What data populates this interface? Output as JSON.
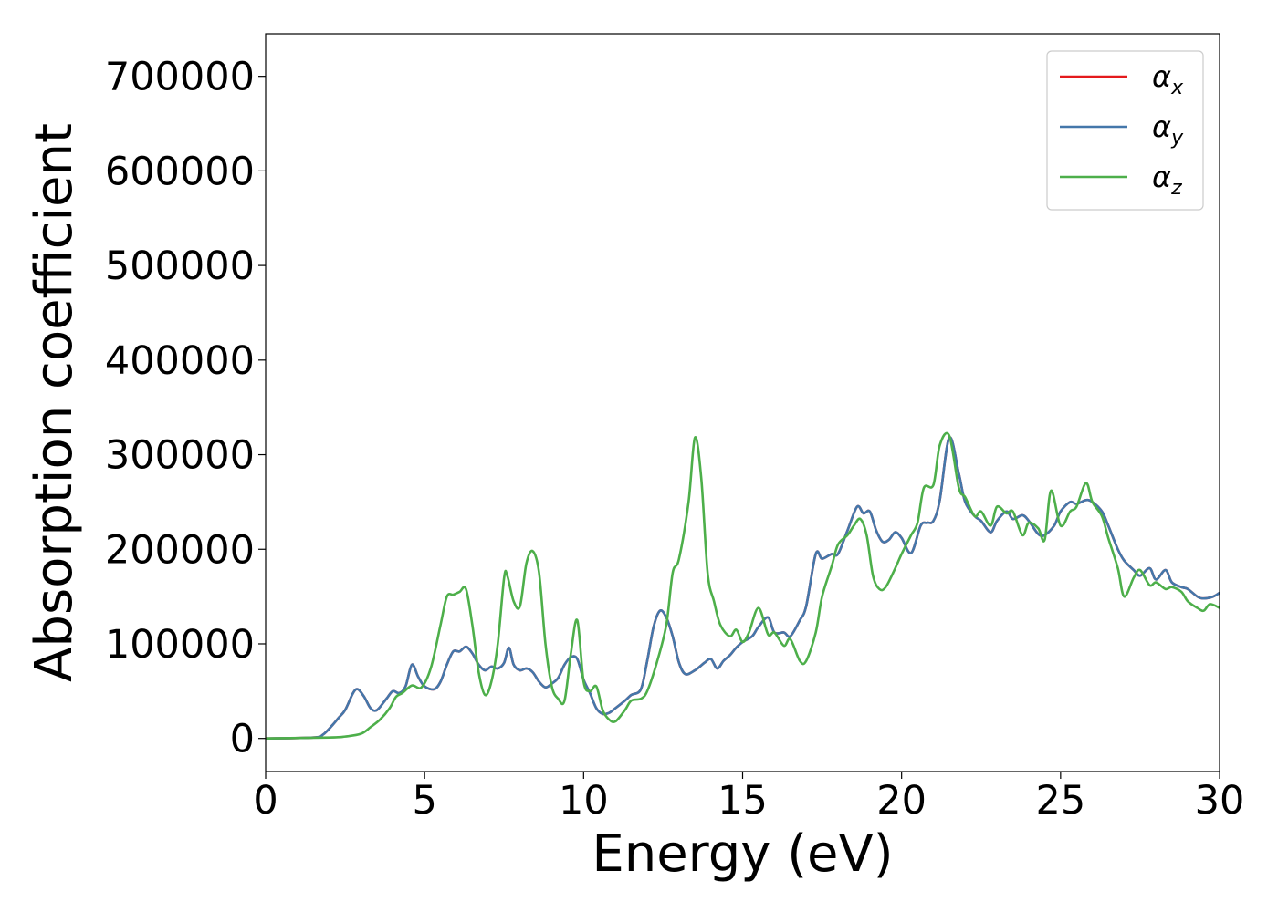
{
  "chart_data": {
    "type": "line",
    "xlabel": "Energy (eV)",
    "ylabel": "Absorption coefficient",
    "xlim": [
      0,
      30
    ],
    "ylim": [
      -35000,
      745000
    ],
    "xticks": [
      0,
      5,
      10,
      15,
      20,
      25,
      30
    ],
    "xtick_labels": [
      "0",
      "5",
      "10",
      "15",
      "20",
      "25",
      "30"
    ],
    "yticks": [
      0,
      100000,
      200000,
      300000,
      400000,
      500000,
      600000,
      700000
    ],
    "ytick_labels": [
      "0",
      "100000",
      "200000",
      "300000",
      "400000",
      "500000",
      "600000",
      "700000"
    ],
    "grid": false,
    "legend_position": "top-right",
    "series": [
      {
        "name": "α_x",
        "label_main": "α",
        "label_sub": "x",
        "color": "#e41a1c",
        "x": [
          0,
          1.5,
          1.8,
          2.1,
          2.3,
          2.5,
          2.75,
          2.9,
          3.1,
          3.3,
          3.5,
          3.8,
          4.0,
          4.2,
          4.4,
          4.6,
          4.8,
          5.0,
          5.3,
          5.5,
          5.7,
          5.9,
          6.1,
          6.3,
          6.5,
          6.7,
          6.9,
          7.1,
          7.3,
          7.5,
          7.65,
          7.8,
          8.0,
          8.2,
          8.4,
          8.6,
          8.8,
          9.0,
          9.2,
          9.4,
          9.6,
          9.8,
          10.0,
          10.2,
          10.4,
          10.6,
          10.8,
          11.0,
          11.3,
          11.5,
          11.8,
          12.0,
          12.2,
          12.4,
          12.6,
          12.8,
          13.0,
          13.2,
          13.5,
          13.8,
          14.0,
          14.2,
          14.4,
          14.6,
          14.8,
          15.0,
          15.3,
          15.5,
          15.8,
          16.0,
          16.3,
          16.5,
          16.8,
          17.0,
          17.3,
          17.5,
          17.8,
          18.0,
          18.3,
          18.6,
          18.8,
          19.0,
          19.2,
          19.4,
          19.6,
          19.8,
          20.0,
          20.3,
          20.6,
          20.8,
          21.0,
          21.2,
          21.5,
          21.8,
          22.0,
          22.3,
          22.5,
          22.8,
          23.0,
          23.3,
          23.5,
          23.8,
          24.0,
          24.3,
          24.5,
          24.8,
          25.0,
          25.3,
          25.5,
          25.8,
          26.0,
          26.3,
          26.5,
          26.8,
          27.0,
          27.3,
          27.5,
          27.8,
          28.0,
          28.3,
          28.5,
          28.8,
          29.0,
          29.3,
          29.5,
          29.8,
          30.0
        ],
        "y": [
          0,
          1000,
          4000,
          14000,
          22000,
          30000,
          48000,
          52000,
          44000,
          32000,
          30000,
          42000,
          50000,
          48000,
          55000,
          78000,
          65000,
          55000,
          52000,
          60000,
          78000,
          92000,
          92000,
          97000,
          90000,
          78000,
          72000,
          76000,
          74000,
          80000,
          96000,
          78000,
          72000,
          74000,
          70000,
          60000,
          54000,
          58000,
          64000,
          78000,
          86000,
          84000,
          62000,
          48000,
          32000,
          26000,
          27000,
          32000,
          40000,
          46000,
          52000,
          82000,
          118000,
          135000,
          128000,
          108000,
          80000,
          68000,
          72000,
          80000,
          84000,
          74000,
          82000,
          88000,
          96000,
          102000,
          108000,
          118000,
          128000,
          112000,
          112000,
          108000,
          125000,
          140000,
          195000,
          190000,
          195000,
          195000,
          220000,
          245000,
          238000,
          240000,
          220000,
          208000,
          210000,
          218000,
          212000,
          196000,
          225000,
          228000,
          230000,
          252000,
          318000,
          280000,
          250000,
          235000,
          230000,
          218000,
          230000,
          240000,
          232000,
          236000,
          230000,
          216000,
          215000,
          225000,
          240000,
          250000,
          248000,
          252000,
          250000,
          240000,
          225000,
          200000,
          188000,
          178000,
          172000,
          180000,
          168000,
          178000,
          165000,
          160000,
          158000,
          150000,
          148000,
          150000,
          154000
        ]
      },
      {
        "name": "α_y",
        "label_main": "α",
        "label_sub": "y",
        "color": "#4477aa",
        "x": [
          0,
          1.5,
          1.8,
          2.1,
          2.3,
          2.5,
          2.75,
          2.9,
          3.1,
          3.3,
          3.5,
          3.8,
          4.0,
          4.2,
          4.4,
          4.6,
          4.8,
          5.0,
          5.3,
          5.5,
          5.7,
          5.9,
          6.1,
          6.3,
          6.5,
          6.7,
          6.9,
          7.1,
          7.3,
          7.5,
          7.65,
          7.8,
          8.0,
          8.2,
          8.4,
          8.6,
          8.8,
          9.0,
          9.2,
          9.4,
          9.6,
          9.8,
          10.0,
          10.2,
          10.4,
          10.6,
          10.8,
          11.0,
          11.3,
          11.5,
          11.8,
          12.0,
          12.2,
          12.4,
          12.6,
          12.8,
          13.0,
          13.2,
          13.5,
          13.8,
          14.0,
          14.2,
          14.4,
          14.6,
          14.8,
          15.0,
          15.3,
          15.5,
          15.8,
          16.0,
          16.3,
          16.5,
          16.8,
          17.0,
          17.3,
          17.5,
          17.8,
          18.0,
          18.3,
          18.6,
          18.8,
          19.0,
          19.2,
          19.4,
          19.6,
          19.8,
          20.0,
          20.3,
          20.6,
          20.8,
          21.0,
          21.2,
          21.5,
          21.8,
          22.0,
          22.3,
          22.5,
          22.8,
          23.0,
          23.3,
          23.5,
          23.8,
          24.0,
          24.3,
          24.5,
          24.8,
          25.0,
          25.3,
          25.5,
          25.8,
          26.0,
          26.3,
          26.5,
          26.8,
          27.0,
          27.3,
          27.5,
          27.8,
          28.0,
          28.3,
          28.5,
          28.8,
          29.0,
          29.3,
          29.5,
          29.8,
          30.0
        ],
        "y": [
          0,
          1000,
          4000,
          14000,
          22000,
          30000,
          48000,
          52000,
          44000,
          32000,
          30000,
          42000,
          50000,
          48000,
          55000,
          78000,
          65000,
          55000,
          52000,
          60000,
          78000,
          92000,
          92000,
          97000,
          90000,
          78000,
          72000,
          76000,
          74000,
          80000,
          96000,
          78000,
          72000,
          74000,
          70000,
          60000,
          54000,
          58000,
          64000,
          78000,
          86000,
          84000,
          62000,
          48000,
          32000,
          26000,
          27000,
          32000,
          40000,
          46000,
          52000,
          82000,
          118000,
          135000,
          128000,
          108000,
          80000,
          68000,
          72000,
          80000,
          84000,
          74000,
          82000,
          88000,
          96000,
          102000,
          108000,
          118000,
          128000,
          112000,
          112000,
          108000,
          125000,
          140000,
          195000,
          190000,
          195000,
          195000,
          220000,
          245000,
          238000,
          240000,
          220000,
          208000,
          210000,
          218000,
          212000,
          196000,
          225000,
          228000,
          230000,
          252000,
          318000,
          280000,
          250000,
          235000,
          230000,
          218000,
          230000,
          240000,
          232000,
          236000,
          230000,
          216000,
          215000,
          225000,
          240000,
          250000,
          248000,
          252000,
          250000,
          240000,
          225000,
          200000,
          188000,
          178000,
          172000,
          180000,
          168000,
          178000,
          165000,
          160000,
          158000,
          150000,
          148000,
          150000,
          154000
        ]
      },
      {
        "name": "α_z",
        "label_main": "α",
        "label_sub": "z",
        "color": "#4daf4a",
        "x": [
          0,
          2.0,
          2.5,
          3.0,
          3.3,
          3.6,
          3.9,
          4.1,
          4.3,
          4.6,
          4.9,
          5.2,
          5.5,
          5.7,
          5.9,
          6.1,
          6.3,
          6.5,
          6.7,
          6.9,
          7.1,
          7.3,
          7.5,
          7.6,
          7.8,
          8.0,
          8.2,
          8.4,
          8.6,
          8.8,
          9.0,
          9.2,
          9.4,
          9.6,
          9.8,
          10.0,
          10.2,
          10.4,
          10.6,
          10.8,
          11.0,
          11.3,
          11.5,
          11.8,
          12.0,
          12.3,
          12.6,
          12.8,
          13.0,
          13.3,
          13.5,
          13.7,
          13.9,
          14.1,
          14.3,
          14.6,
          14.8,
          15.0,
          15.2,
          15.5,
          15.8,
          16.0,
          16.3,
          16.5,
          16.8,
          17.0,
          17.3,
          17.5,
          17.8,
          18.0,
          18.3,
          18.5,
          18.7,
          18.9,
          19.1,
          19.3,
          19.5,
          19.8,
          20.0,
          20.3,
          20.5,
          20.7,
          21.0,
          21.2,
          21.5,
          21.8,
          22.0,
          22.3,
          22.5,
          22.8,
          23.0,
          23.3,
          23.5,
          23.8,
          24.0,
          24.3,
          24.5,
          24.7,
          25.0,
          25.3,
          25.5,
          25.8,
          26.0,
          26.3,
          26.5,
          26.8,
          27.0,
          27.3,
          27.5,
          27.8,
          28.0,
          28.3,
          28.5,
          28.8,
          29.0,
          29.3,
          29.5,
          29.7,
          30.0
        ],
        "y": [
          0,
          1000,
          2000,
          5000,
          12000,
          20000,
          32000,
          44000,
          48000,
          56000,
          54000,
          75000,
          120000,
          150000,
          152000,
          155000,
          158000,
          120000,
          70000,
          46000,
          60000,
          100000,
          170000,
          172000,
          145000,
          140000,
          185000,
          198000,
          175000,
          100000,
          55000,
          42000,
          40000,
          90000,
          125000,
          60000,
          50000,
          55000,
          30000,
          20000,
          18000,
          30000,
          40000,
          42000,
          50000,
          80000,
          120000,
          175000,
          190000,
          250000,
          318000,
          275000,
          175000,
          145000,
          120000,
          108000,
          115000,
          102000,
          112000,
          138000,
          110000,
          112000,
          98000,
          105000,
          82000,
          82000,
          112000,
          150000,
          182000,
          205000,
          215000,
          225000,
          232000,
          215000,
          172000,
          158000,
          160000,
          180000,
          195000,
          215000,
          228000,
          265000,
          268000,
          310000,
          320000,
          265000,
          255000,
          235000,
          240000,
          225000,
          245000,
          238000,
          240000,
          215000,
          228000,
          222000,
          210000,
          262000,
          225000,
          240000,
          245000,
          270000,
          250000,
          235000,
          212000,
          180000,
          150000,
          170000,
          178000,
          162000,
          165000,
          158000,
          160000,
          155000,
          145000,
          138000,
          135000,
          142000,
          138000
        ]
      }
    ]
  }
}
